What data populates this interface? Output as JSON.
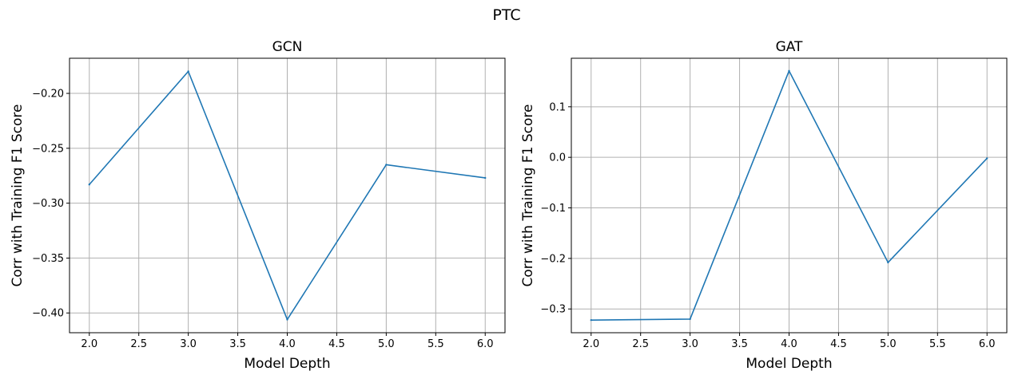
{
  "figure": {
    "suptitle": "PTC"
  },
  "chart_data": [
    {
      "type": "line",
      "title": "GCN",
      "xlabel": "Model Depth",
      "ylabel": "Corr with Training F1 Score",
      "x": [
        2.0,
        3.0,
        4.0,
        5.0,
        6.0
      ],
      "series": [
        {
          "values": [
            -0.283,
            -0.18,
            -0.406,
            -0.265,
            -0.277
          ],
          "color": "#1f77b4"
        }
      ],
      "xlim": [
        1.8,
        6.2
      ],
      "ylim": [
        -0.418,
        -0.168
      ],
      "xticks": [
        2.0,
        2.5,
        3.0,
        3.5,
        4.0,
        4.5,
        5.0,
        5.5,
        6.0
      ],
      "xtick_labels": [
        "2.0",
        "2.5",
        "3.0",
        "3.5",
        "4.0",
        "4.5",
        "5.0",
        "5.5",
        "6.0"
      ],
      "yticks": [
        -0.4,
        -0.35,
        -0.3,
        -0.25,
        -0.2
      ],
      "ytick_labels": [
        "−0.40",
        "−0.35",
        "−0.30",
        "−0.25",
        "−0.20"
      ],
      "grid": true,
      "legend": "none"
    },
    {
      "type": "line",
      "title": "GAT",
      "xlabel": "Model Depth",
      "ylabel": "Corr with Training F1 Score",
      "x": [
        2.0,
        3.0,
        4.0,
        5.0,
        6.0
      ],
      "series": [
        {
          "values": [
            -0.322,
            -0.32,
            0.171,
            -0.208,
            -0.002
          ],
          "color": "#1f77b4"
        }
      ],
      "xlim": [
        1.8,
        6.2
      ],
      "ylim": [
        -0.347,
        0.196
      ],
      "xticks": [
        2.0,
        2.5,
        3.0,
        3.5,
        4.0,
        4.5,
        5.0,
        5.5,
        6.0
      ],
      "xtick_labels": [
        "2.0",
        "2.5",
        "3.0",
        "3.5",
        "4.0",
        "4.5",
        "5.0",
        "5.5",
        "6.0"
      ],
      "yticks": [
        -0.3,
        -0.2,
        -0.1,
        0.0,
        0.1
      ],
      "ytick_labels": [
        "−0.3",
        "−0.2",
        "−0.1",
        "0.0",
        "0.1"
      ],
      "grid": true,
      "legend": "none"
    }
  ]
}
